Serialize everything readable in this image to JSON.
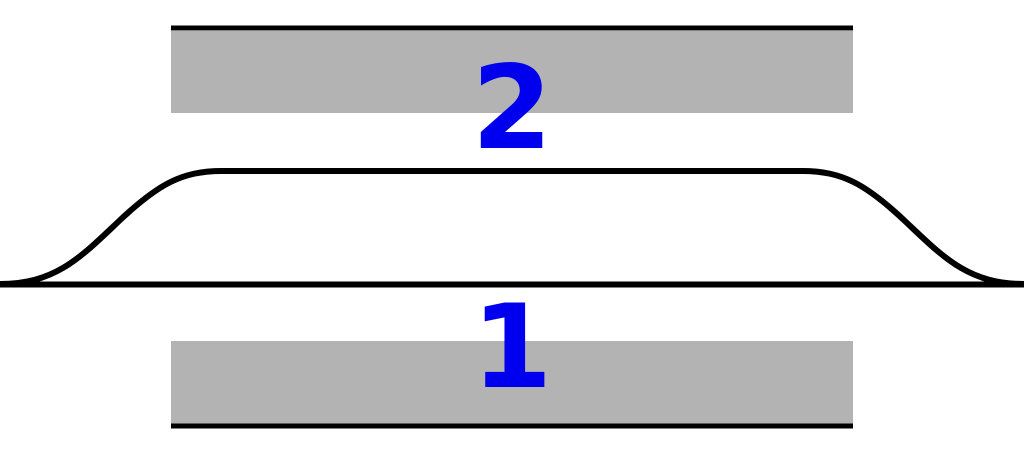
{
  "labels": {
    "upper": "2",
    "lower": "1"
  },
  "colors": {
    "label": "#0000ee",
    "plate_fill": "#b3b3b3",
    "line": "#000000"
  }
}
